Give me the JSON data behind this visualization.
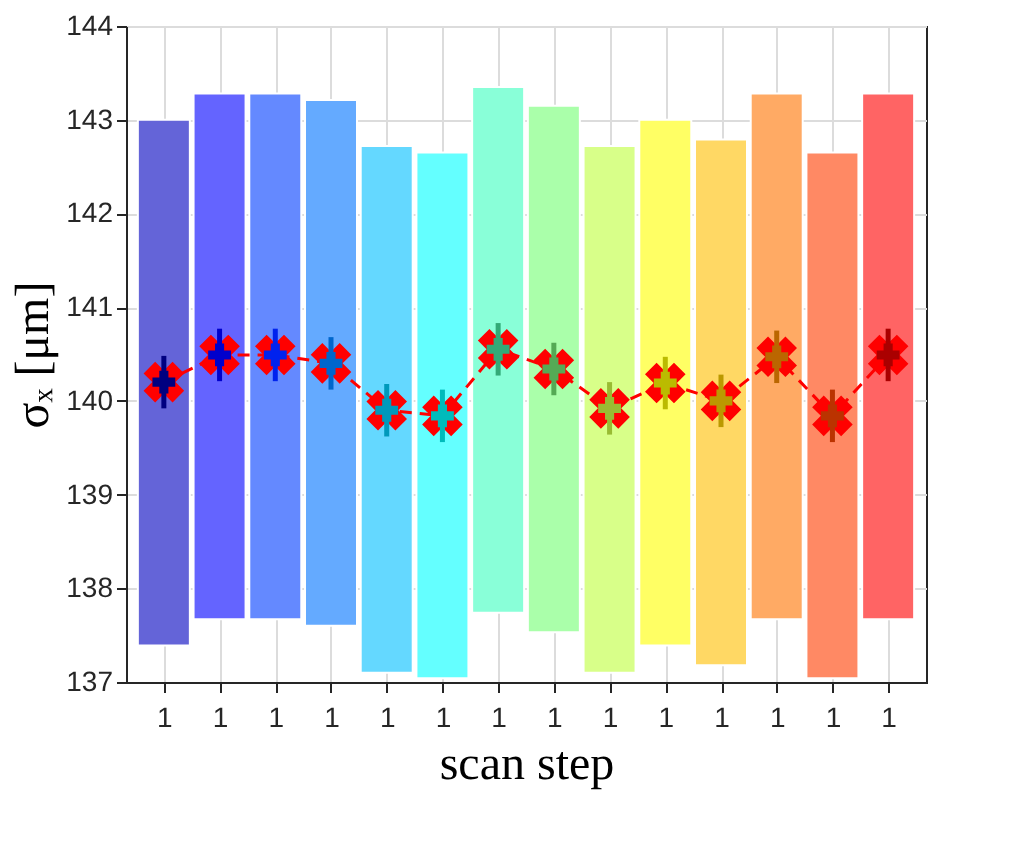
{
  "chart_data": {
    "type": "bar",
    "xlabel": "scan step",
    "ylabel": "σₓ [μm]",
    "categories": [
      "1",
      "1",
      "1",
      "1",
      "1",
      "1",
      "1",
      "1",
      "1",
      "1",
      "1",
      "1",
      "1",
      "1"
    ],
    "ylim": [
      137,
      144
    ],
    "yticks": [
      137,
      138,
      139,
      140,
      141,
      142,
      143,
      144
    ],
    "grid": true,
    "legend": false,
    "series": [
      {
        "base": [
          137.39,
          137.67,
          137.67,
          137.6,
          137.1,
          137.04,
          137.74,
          137.53,
          137.1,
          137.39,
          137.18,
          137.67,
          137.04,
          137.67
        ],
        "values": [
          5.61,
          5.61,
          5.61,
          5.61,
          5.62,
          5.61,
          5.61,
          5.62,
          5.62,
          5.61,
          5.61,
          5.61,
          5.61,
          5.61
        ],
        "colors": [
          "#6464d8",
          "#6464ff",
          "#6489ff",
          "#64aaff",
          "#64d8ff",
          "#64ffff",
          "#89ffd8",
          "#aaffaa",
          "#d8ff89",
          "#ffff64",
          "#ffd864",
          "#ffaa64",
          "#ff8964",
          "#ff6464"
        ]
      },
      {
        "type": "scatter",
        "marker": "cross",
        "values": [
          140.2,
          140.49,
          140.49,
          140.4,
          139.9,
          139.84,
          140.55,
          140.34,
          139.92,
          140.19,
          140.0,
          140.47,
          139.84,
          140.49
        ],
        "errors": [
          0.28,
          0.28,
          0.28,
          0.28,
          0.28,
          0.28,
          0.28,
          0.28,
          0.28,
          0.28,
          0.28,
          0.28,
          0.28,
          0.28
        ],
        "colors": [
          "#000080",
          "#0000cc",
          "#0022ee",
          "#0066cc",
          "#0099bb",
          "#00bbbb",
          "#33aa77",
          "#55aa55",
          "#99bb33",
          "#bbbb00",
          "#bb9900",
          "#bb6600",
          "#bb3300",
          "#aa0000"
        ]
      },
      {
        "type": "line",
        "marker": "cross",
        "line_style": "dashed",
        "color": "#ff0000",
        "values": [
          140.2,
          140.49,
          140.49,
          140.4,
          139.9,
          139.84,
          140.55,
          140.34,
          139.92,
          140.19,
          140.0,
          140.47,
          139.84,
          140.49
        ]
      }
    ]
  }
}
